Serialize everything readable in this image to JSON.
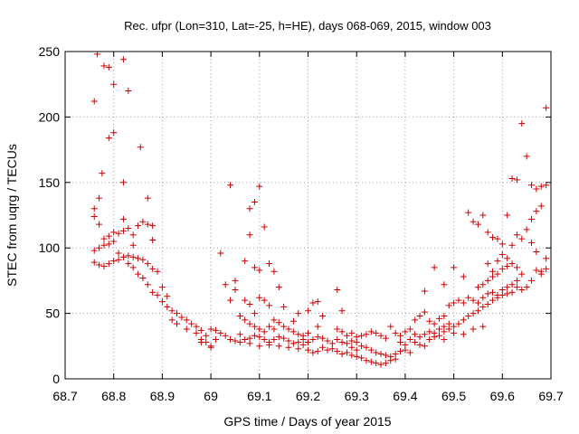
{
  "chart_data": {
    "type": "scatter",
    "title": "Rec. ufpr (Lon=310, Lat=-25, h=HE), days 068-069, 2015, window 003",
    "xlabel": "GPS time / Days of year 2015",
    "ylabel": "STEC from uqrg / TECUs",
    "xlim": [
      68.7,
      69.7
    ],
    "ylim": [
      0,
      250
    ],
    "xticks": [
      "68.7",
      "68.8",
      "68.9",
      "69",
      "69.1",
      "69.2",
      "69.3",
      "69.4",
      "69.5",
      "69.6",
      "69.7"
    ],
    "yticks": [
      "0",
      "50",
      "100",
      "150",
      "200",
      "250"
    ],
    "grid": true,
    "legend": "none",
    "marker": "+",
    "color": "#cc0000",
    "points": [
      [
        68.76,
        212
      ],
      [
        68.766,
        248
      ],
      [
        68.78,
        239
      ],
      [
        68.79,
        238
      ],
      [
        68.8,
        225
      ],
      [
        68.82,
        244
      ],
      [
        68.83,
        220
      ],
      [
        68.79,
        184
      ],
      [
        68.8,
        188
      ],
      [
        68.776,
        157
      ],
      [
        68.855,
        177
      ],
      [
        68.82,
        150
      ],
      [
        68.76,
        130
      ],
      [
        68.76,
        124
      ],
      [
        68.77,
        138
      ],
      [
        68.77,
        118
      ],
      [
        68.82,
        122
      ],
      [
        68.87,
        138
      ],
      [
        68.76,
        98
      ],
      [
        68.77,
        100
      ],
      [
        68.78,
        107
      ],
      [
        68.78,
        102
      ],
      [
        68.79,
        103
      ],
      [
        68.79,
        109
      ],
      [
        68.8,
        105
      ],
      [
        68.8,
        112
      ],
      [
        68.81,
        111
      ],
      [
        68.82,
        113
      ],
      [
        68.83,
        115
      ],
      [
        68.84,
        110
      ],
      [
        68.85,
        117
      ],
      [
        68.86,
        120
      ],
      [
        68.87,
        118
      ],
      [
        68.88,
        117
      ],
      [
        68.88,
        106
      ],
      [
        68.84,
        102
      ],
      [
        68.76,
        89
      ],
      [
        68.77,
        87
      ],
      [
        68.78,
        86
      ],
      [
        68.79,
        88
      ],
      [
        68.8,
        90
      ],
      [
        68.81,
        91
      ],
      [
        68.82,
        93
      ],
      [
        68.83,
        94
      ],
      [
        68.84,
        93
      ],
      [
        68.85,
        92
      ],
      [
        68.86,
        91
      ],
      [
        68.87,
        88
      ],
      [
        68.88,
        84
      ],
      [
        68.89,
        82
      ],
      [
        68.81,
        96
      ],
      [
        68.83,
        88
      ],
      [
        68.84,
        85
      ],
      [
        68.85,
        80
      ],
      [
        68.86,
        77
      ],
      [
        68.87,
        72
      ],
      [
        68.88,
        66
      ],
      [
        68.89,
        64
      ],
      [
        68.9,
        70
      ],
      [
        68.9,
        59
      ],
      [
        68.91,
        55
      ],
      [
        68.91,
        63
      ],
      [
        68.92,
        52
      ],
      [
        68.93,
        50
      ],
      [
        68.94,
        47
      ],
      [
        68.95,
        45
      ],
      [
        68.96,
        42
      ],
      [
        68.97,
        40
      ],
      [
        68.98,
        37
      ],
      [
        68.99,
        33
      ],
      [
        68.99,
        28
      ],
      [
        68.92,
        45
      ],
      [
        68.93,
        42
      ],
      [
        68.95,
        38
      ],
      [
        68.97,
        35
      ],
      [
        68.98,
        30
      ],
      [
        69.0,
        25
      ],
      [
        69.0,
        38
      ],
      [
        69.01,
        37
      ],
      [
        69.02,
        96
      ],
      [
        69.03,
        72
      ],
      [
        69.04,
        60
      ],
      [
        69.05,
        75
      ],
      [
        69.04,
        148
      ],
      [
        69.08,
        130
      ],
      [
        69.09,
        135
      ],
      [
        69.1,
        147
      ],
      [
        69.07,
        90
      ],
      [
        69.08,
        110
      ],
      [
        69.11,
        116
      ],
      [
        69.09,
        85
      ],
      [
        69.1,
        83
      ],
      [
        69.12,
        88
      ],
      [
        69.13,
        82
      ],
      [
        69.14,
        70
      ],
      [
        69.1,
        62
      ],
      [
        69.11,
        60
      ],
      [
        69.12,
        56
      ],
      [
        69.07,
        60
      ],
      [
        69.08,
        57
      ],
      [
        69.06,
        48
      ],
      [
        69.09,
        50
      ],
      [
        69.05,
        68
      ],
      [
        69.06,
        48
      ],
      [
        69.07,
        45
      ],
      [
        69.08,
        42
      ],
      [
        69.09,
        40
      ],
      [
        69.1,
        38
      ],
      [
        69.11,
        36
      ],
      [
        69.12,
        40
      ],
      [
        69.13,
        45
      ],
      [
        69.14,
        43
      ],
      [
        69.15,
        40
      ],
      [
        69.16,
        38
      ],
      [
        69.17,
        36
      ],
      [
        69.18,
        34
      ],
      [
        69.19,
        33
      ],
      [
        69.2,
        35
      ],
      [
        69.15,
        55
      ],
      [
        69.18,
        50
      ],
      [
        69.2,
        52
      ],
      [
        69.21,
        58
      ],
      [
        69.22,
        59
      ],
      [
        69.23,
        48
      ],
      [
        69.22,
        40
      ],
      [
        69.02,
        35
      ],
      [
        69.03,
        33
      ],
      [
        69.04,
        30
      ],
      [
        69.05,
        29
      ],
      [
        69.06,
        28
      ],
      [
        69.07,
        30
      ],
      [
        69.08,
        31
      ],
      [
        69.09,
        33
      ],
      [
        69.1,
        32
      ],
      [
        69.11,
        30
      ],
      [
        69.12,
        28
      ],
      [
        69.13,
        30
      ],
      [
        69.14,
        32
      ],
      [
        69.15,
        31
      ],
      [
        69.16,
        29
      ],
      [
        69.17,
        27
      ],
      [
        69.18,
        28
      ],
      [
        69.19,
        30
      ],
      [
        69.2,
        28
      ],
      [
        69.21,
        30
      ],
      [
        69.22,
        32
      ],
      [
        69.23,
        31
      ],
      [
        69.24,
        29
      ],
      [
        69.25,
        27
      ],
      [
        69.06,
        34
      ],
      [
        69.08,
        27
      ],
      [
        69.1,
        25
      ],
      [
        69.12,
        26
      ],
      [
        69.14,
        25
      ],
      [
        69.16,
        24
      ],
      [
        69.18,
        23
      ],
      [
        69.2,
        22
      ],
      [
        69.21,
        20
      ],
      [
        69.22,
        21
      ],
      [
        69.24,
        22
      ],
      [
        69.26,
        21
      ],
      [
        69.27,
        19
      ],
      [
        69.28,
        20
      ],
      [
        69.29,
        18
      ],
      [
        69.3,
        17
      ],
      [
        69.13,
        38
      ],
      [
        69.17,
        44
      ],
      [
        69.19,
        26
      ],
      [
        69.23,
        24
      ],
      [
        69.25,
        23
      ],
      [
        69.26,
        68
      ],
      [
        69.27,
        52
      ],
      [
        69.26,
        38
      ],
      [
        69.27,
        36
      ],
      [
        69.28,
        33
      ],
      [
        69.29,
        35
      ],
      [
        69.3,
        32
      ],
      [
        69.31,
        33
      ],
      [
        69.32,
        34
      ],
      [
        69.33,
        36
      ],
      [
        69.34,
        35
      ],
      [
        69.35,
        33
      ],
      [
        69.36,
        31
      ],
      [
        69.37,
        40
      ],
      [
        69.38,
        35
      ],
      [
        69.39,
        33
      ],
      [
        69.26,
        30
      ],
      [
        69.27,
        28
      ],
      [
        69.28,
        27
      ],
      [
        69.29,
        29
      ],
      [
        69.3,
        28
      ],
      [
        69.31,
        25
      ],
      [
        69.32,
        24
      ],
      [
        69.33,
        22
      ],
      [
        69.34,
        20
      ],
      [
        69.35,
        19
      ],
      [
        69.36,
        18
      ],
      [
        69.37,
        17
      ],
      [
        69.38,
        19
      ],
      [
        69.39,
        21
      ],
      [
        69.4,
        22
      ],
      [
        69.41,
        20
      ],
      [
        69.31,
        16
      ],
      [
        69.32,
        14
      ],
      [
        69.33,
        13
      ],
      [
        69.34,
        12
      ],
      [
        69.35,
        11
      ],
      [
        69.36,
        12
      ],
      [
        69.37,
        14
      ],
      [
        69.38,
        15
      ],
      [
        69.3,
        22
      ],
      [
        69.29,
        24
      ],
      [
        69.4,
        26
      ],
      [
        69.39,
        28
      ],
      [
        69.41,
        30
      ],
      [
        69.42,
        28
      ],
      [
        69.43,
        26
      ],
      [
        69.44,
        25
      ],
      [
        69.4,
        36
      ],
      [
        69.41,
        38
      ],
      [
        69.42,
        34
      ],
      [
        69.43,
        32
      ],
      [
        69.44,
        34
      ],
      [
        69.45,
        36
      ],
      [
        69.46,
        35
      ],
      [
        69.47,
        38
      ],
      [
        69.42,
        45
      ],
      [
        69.43,
        48
      ],
      [
        69.44,
        51
      ],
      [
        69.45,
        44
      ],
      [
        69.46,
        42
      ],
      [
        69.47,
        46
      ],
      [
        69.48,
        40
      ],
      [
        69.49,
        42
      ],
      [
        69.44,
        67
      ],
      [
        69.46,
        85
      ],
      [
        69.48,
        72
      ],
      [
        69.5,
        85
      ],
      [
        69.52,
        78
      ],
      [
        69.53,
        127
      ],
      [
        69.54,
        120
      ],
      [
        69.55,
        118
      ],
      [
        69.56,
        125
      ],
      [
        69.57,
        112
      ],
      [
        69.58,
        108
      ],
      [
        69.59,
        107
      ],
      [
        69.6,
        103
      ],
      [
        69.61,
        125
      ],
      [
        69.62,
        102
      ],
      [
        69.63,
        110
      ],
      [
        69.64,
        195
      ],
      [
        69.65,
        170
      ],
      [
        69.62,
        153
      ],
      [
        69.63,
        152
      ],
      [
        69.66,
        148
      ],
      [
        69.67,
        145
      ],
      [
        69.68,
        147
      ],
      [
        69.69,
        148
      ],
      [
        69.68,
        132
      ],
      [
        69.67,
        128
      ],
      [
        69.66,
        122
      ],
      [
        69.65,
        114
      ],
      [
        69.64,
        107
      ],
      [
        69.66,
        104
      ],
      [
        69.67,
        97
      ],
      [
        69.69,
        92
      ],
      [
        69.69,
        207
      ],
      [
        69.68,
        82
      ],
      [
        69.69,
        84
      ],
      [
        69.68,
        80
      ],
      [
        69.67,
        83
      ],
      [
        69.66,
        75
      ],
      [
        69.65,
        70
      ],
      [
        69.64,
        68
      ],
      [
        69.48,
        48
      ],
      [
        69.49,
        56
      ],
      [
        69.5,
        58
      ],
      [
        69.51,
        60
      ],
      [
        69.52,
        58
      ],
      [
        69.53,
        62
      ],
      [
        69.54,
        60
      ],
      [
        69.55,
        58
      ],
      [
        69.56,
        62
      ],
      [
        69.57,
        65
      ],
      [
        69.58,
        66
      ],
      [
        69.59,
        64
      ],
      [
        69.6,
        68
      ],
      [
        69.61,
        70
      ],
      [
        69.62,
        72
      ],
      [
        69.63,
        75
      ],
      [
        69.48,
        36
      ],
      [
        69.49,
        38
      ],
      [
        69.5,
        40
      ],
      [
        69.51,
        42
      ],
      [
        69.52,
        45
      ],
      [
        69.53,
        48
      ],
      [
        69.54,
        50
      ],
      [
        69.55,
        52
      ],
      [
        69.56,
        55
      ],
      [
        69.57,
        57
      ],
      [
        69.58,
        60
      ],
      [
        69.59,
        62
      ],
      [
        69.6,
        64
      ],
      [
        69.61,
        65
      ],
      [
        69.62,
        66
      ],
      [
        69.63,
        70
      ],
      [
        69.45,
        30
      ],
      [
        69.46,
        32
      ],
      [
        69.47,
        33
      ],
      [
        69.48,
        30
      ],
      [
        69.5,
        35
      ],
      [
        69.52,
        34
      ],
      [
        69.54,
        38
      ],
      [
        69.56,
        40
      ],
      [
        69.57,
        88
      ],
      [
        69.58,
        82
      ],
      [
        69.59,
        90
      ],
      [
        69.6,
        95
      ],
      [
        69.61,
        92
      ],
      [
        69.62,
        88
      ],
      [
        69.63,
        85
      ],
      [
        69.64,
        80
      ],
      [
        69.55,
        70
      ],
      [
        69.56,
        72
      ],
      [
        69.57,
        75
      ],
      [
        69.58,
        78
      ],
      [
        69.59,
        80
      ],
      [
        69.6,
        84
      ],
      [
        69.61,
        86
      ],
      [
        69.0,
        24
      ],
      [
        68.98,
        28
      ],
      [
        69.01,
        30
      ]
    ]
  }
}
